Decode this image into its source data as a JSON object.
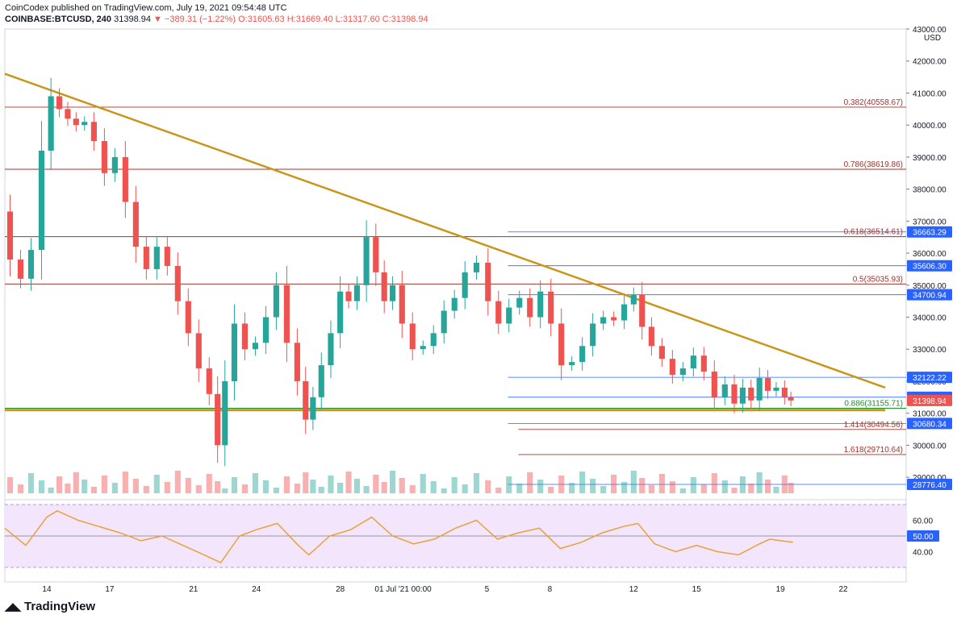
{
  "header": {
    "publisher_line": "CoinCodex published on TradingView.com, July 19, 2021 09:54:48 UTC",
    "symbol": "COINBASE:BTCUSD, 240",
    "last": "31398.94",
    "change": "−389.31 (−1.22%)",
    "open": "O:31605.63",
    "high": "H:31669.40",
    "low": "L:31317.60",
    "close": "C:31398.94"
  },
  "brand": {
    "name": "TradingView"
  },
  "colors": {
    "up": "#26a69a",
    "down": "#ef5350",
    "trendline": "#c8961a",
    "fib": "#a1332b",
    "blue_level": "#2962ff",
    "rsi_line": "#e8a23a",
    "rsi_band": "#f3e5fb"
  },
  "chart_data": {
    "type": "candlestick",
    "symbol": "COINBASE:BTCUSD",
    "timeframe": "240",
    "currency": "USD",
    "ylim": [
      28500,
      43000
    ],
    "y_ticks": [
      29000,
      30000,
      31000,
      32000,
      33000,
      34000,
      35000,
      36000,
      37000,
      38000,
      39000,
      40000,
      41000,
      42000,
      43000
    ],
    "y_tick_labels": [
      "29000.00",
      "30000.00",
      "31000.00",
      "32000.00",
      "33000.00",
      "34000.00",
      "35000.00",
      "36000.00",
      "37000.00",
      "38000.00",
      "39000.00",
      "40000.00",
      "41000.00",
      "42000.00",
      "43000.00"
    ],
    "x_range_days": [
      12,
      24
    ],
    "x_ticks": [
      {
        "day": 14,
        "label": "14"
      },
      {
        "day": 17,
        "label": "17"
      },
      {
        "day": 21,
        "label": "21"
      },
      {
        "day": 24,
        "label": "24"
      },
      {
        "day": 28,
        "label": "28"
      },
      {
        "day": 31,
        "label": "01 Jul '21  00:00"
      },
      {
        "day": 35,
        "label": "5"
      },
      {
        "day": 38,
        "label": "8"
      },
      {
        "day": 42,
        "label": "12"
      },
      {
        "day": 45,
        "label": "15"
      },
      {
        "day": 49,
        "label": "19"
      },
      {
        "day": 52,
        "label": "22"
      }
    ],
    "price_path": [
      [
        12.0,
        37300
      ],
      [
        12.5,
        35800
      ],
      [
        13.0,
        35200
      ],
      [
        13.5,
        36100
      ],
      [
        14.0,
        39200
      ],
      [
        14.4,
        40900
      ],
      [
        14.8,
        40500
      ],
      [
        15.2,
        40200
      ],
      [
        15.6,
        40000
      ],
      [
        16.0,
        40100
      ],
      [
        16.5,
        39500
      ],
      [
        17.0,
        38500
      ],
      [
        17.5,
        39000
      ],
      [
        18.0,
        37600
      ],
      [
        18.5,
        36200
      ],
      [
        19.0,
        35500
      ],
      [
        19.5,
        36200
      ],
      [
        20.0,
        35600
      ],
      [
        20.5,
        34500
      ],
      [
        21.0,
        33500
      ],
      [
        21.5,
        32400
      ],
      [
        22.0,
        31600
      ],
      [
        22.3,
        30000
      ],
      [
        22.7,
        32000
      ],
      [
        23.2,
        33800
      ],
      [
        23.7,
        33000
      ],
      [
        24.2,
        33200
      ],
      [
        24.7,
        34000
      ],
      [
        25.2,
        35000
      ],
      [
        25.7,
        33200
      ],
      [
        26.2,
        32000
      ],
      [
        26.5,
        30800
      ],
      [
        26.9,
        31500
      ],
      [
        27.3,
        32500
      ],
      [
        27.8,
        33500
      ],
      [
        28.2,
        34800
      ],
      [
        28.6,
        34500
      ],
      [
        29.0,
        35000
      ],
      [
        29.5,
        36500
      ],
      [
        29.9,
        35400
      ],
      [
        30.3,
        34500
      ],
      [
        30.7,
        35000
      ],
      [
        31.2,
        33800
      ],
      [
        31.7,
        33000
      ],
      [
        32.2,
        33100
      ],
      [
        32.7,
        33500
      ],
      [
        33.2,
        34200
      ],
      [
        33.7,
        34600
      ],
      [
        34.2,
        35400
      ],
      [
        34.8,
        35700
      ],
      [
        35.3,
        34500
      ],
      [
        35.8,
        33800
      ],
      [
        36.3,
        34300
      ],
      [
        36.8,
        34600
      ],
      [
        37.3,
        34000
      ],
      [
        37.8,
        34800
      ],
      [
        38.3,
        33800
      ],
      [
        38.8,
        32500
      ],
      [
        39.3,
        32600
      ],
      [
        39.8,
        33100
      ],
      [
        40.3,
        33800
      ],
      [
        40.8,
        34000
      ],
      [
        41.3,
        33900
      ],
      [
        41.8,
        34400
      ],
      [
        42.2,
        34700
      ],
      [
        42.6,
        33700
      ],
      [
        43.1,
        33100
      ],
      [
        43.6,
        32700
      ],
      [
        44.1,
        32200
      ],
      [
        44.6,
        32400
      ],
      [
        45.1,
        32800
      ],
      [
        45.6,
        32300
      ],
      [
        46.1,
        31500
      ],
      [
        46.6,
        31900
      ],
      [
        47.0,
        31300
      ],
      [
        47.4,
        31800
      ],
      [
        47.8,
        31400
      ],
      [
        48.2,
        32100
      ],
      [
        48.6,
        31700
      ],
      [
        49.0,
        31800
      ],
      [
        49.4,
        31500
      ],
      [
        49.6,
        31398.94
      ]
    ],
    "rsi": {
      "ylim": [
        30,
        70
      ],
      "y_ticks": [
        40,
        60
      ],
      "y_tick_labels": [
        "40.00",
        "60.00"
      ],
      "level": 50,
      "level_label": "50.00",
      "path": [
        [
          12,
          55
        ],
        [
          13,
          44
        ],
        [
          14,
          62
        ],
        [
          14.5,
          66
        ],
        [
          15.5,
          60
        ],
        [
          16.5,
          56
        ],
        [
          17.5,
          52
        ],
        [
          18.5,
          47
        ],
        [
          19.5,
          50
        ],
        [
          20.5,
          44
        ],
        [
          21.5,
          38
        ],
        [
          22.3,
          33
        ],
        [
          23.2,
          50
        ],
        [
          24,
          54
        ],
        [
          25,
          58
        ],
        [
          26,
          44
        ],
        [
          26.5,
          38
        ],
        [
          27.5,
          50
        ],
        [
          28.5,
          54
        ],
        [
          29.5,
          62
        ],
        [
          30.5,
          50
        ],
        [
          31.5,
          45
        ],
        [
          32.5,
          48
        ],
        [
          33.5,
          55
        ],
        [
          34.5,
          60
        ],
        [
          35.5,
          48
        ],
        [
          36.5,
          52
        ],
        [
          37.5,
          55
        ],
        [
          38.5,
          42
        ],
        [
          39.5,
          46
        ],
        [
          40.5,
          52
        ],
        [
          41.5,
          56
        ],
        [
          42.2,
          58
        ],
        [
          43,
          45
        ],
        [
          44,
          40
        ],
        [
          45,
          44
        ],
        [
          46,
          40
        ],
        [
          47,
          38
        ],
        [
          48,
          45
        ],
        [
          48.5,
          48
        ],
        [
          49,
          47
        ],
        [
          49.6,
          46
        ]
      ]
    },
    "fib_levels": [
      {
        "ratio": "0.382",
        "price": 40558.67,
        "label": "0.382(40558.67)"
      },
      {
        "ratio": "0.786",
        "price": 38619.86,
        "label": "0.786(38619.86)"
      },
      {
        "ratio": "0.618",
        "price": 36514.61,
        "label": "0.618(36514.61)"
      },
      {
        "ratio": "0.5",
        "price": 35035.93,
        "label": "0.5(35035.93)"
      },
      {
        "ratio": "0.886",
        "price": 31155.71,
        "label": "0.886(31155.71)"
      },
      {
        "ratio": "1.414",
        "price": 30494.56,
        "label": "1.414(30494.56)"
      },
      {
        "ratio": "1.618",
        "price": 29710.64,
        "label": "1.618(29710.64)"
      }
    ],
    "price_tags": [
      {
        "price": 36663.29,
        "label": "36663.29",
        "kind": "blue"
      },
      {
        "price": 35606.3,
        "label": "35606.30",
        "kind": "blue"
      },
      {
        "price": 34700.94,
        "label": "34700.94",
        "kind": "blue"
      },
      {
        "price": 32122.22,
        "label": "32122.22",
        "kind": "blue"
      },
      {
        "price": 31500.0,
        "label": "31500.00",
        "kind": "blue"
      },
      {
        "price": 31398.94,
        "label": "31398.94",
        "kind": "last"
      },
      {
        "price": 30680.34,
        "label": "30680.34",
        "kind": "blue"
      },
      {
        "price": 28776.4,
        "label": "28776.40",
        "kind": "blue"
      }
    ],
    "trendlines": [
      {
        "kind": "descending-resistance",
        "from": [
          12.0,
          41600
        ],
        "to": [
          54.0,
          31800
        ]
      },
      {
        "kind": "horizontal-support",
        "from": [
          12.0,
          31100
        ],
        "to": [
          54.0,
          31100
        ]
      }
    ]
  }
}
